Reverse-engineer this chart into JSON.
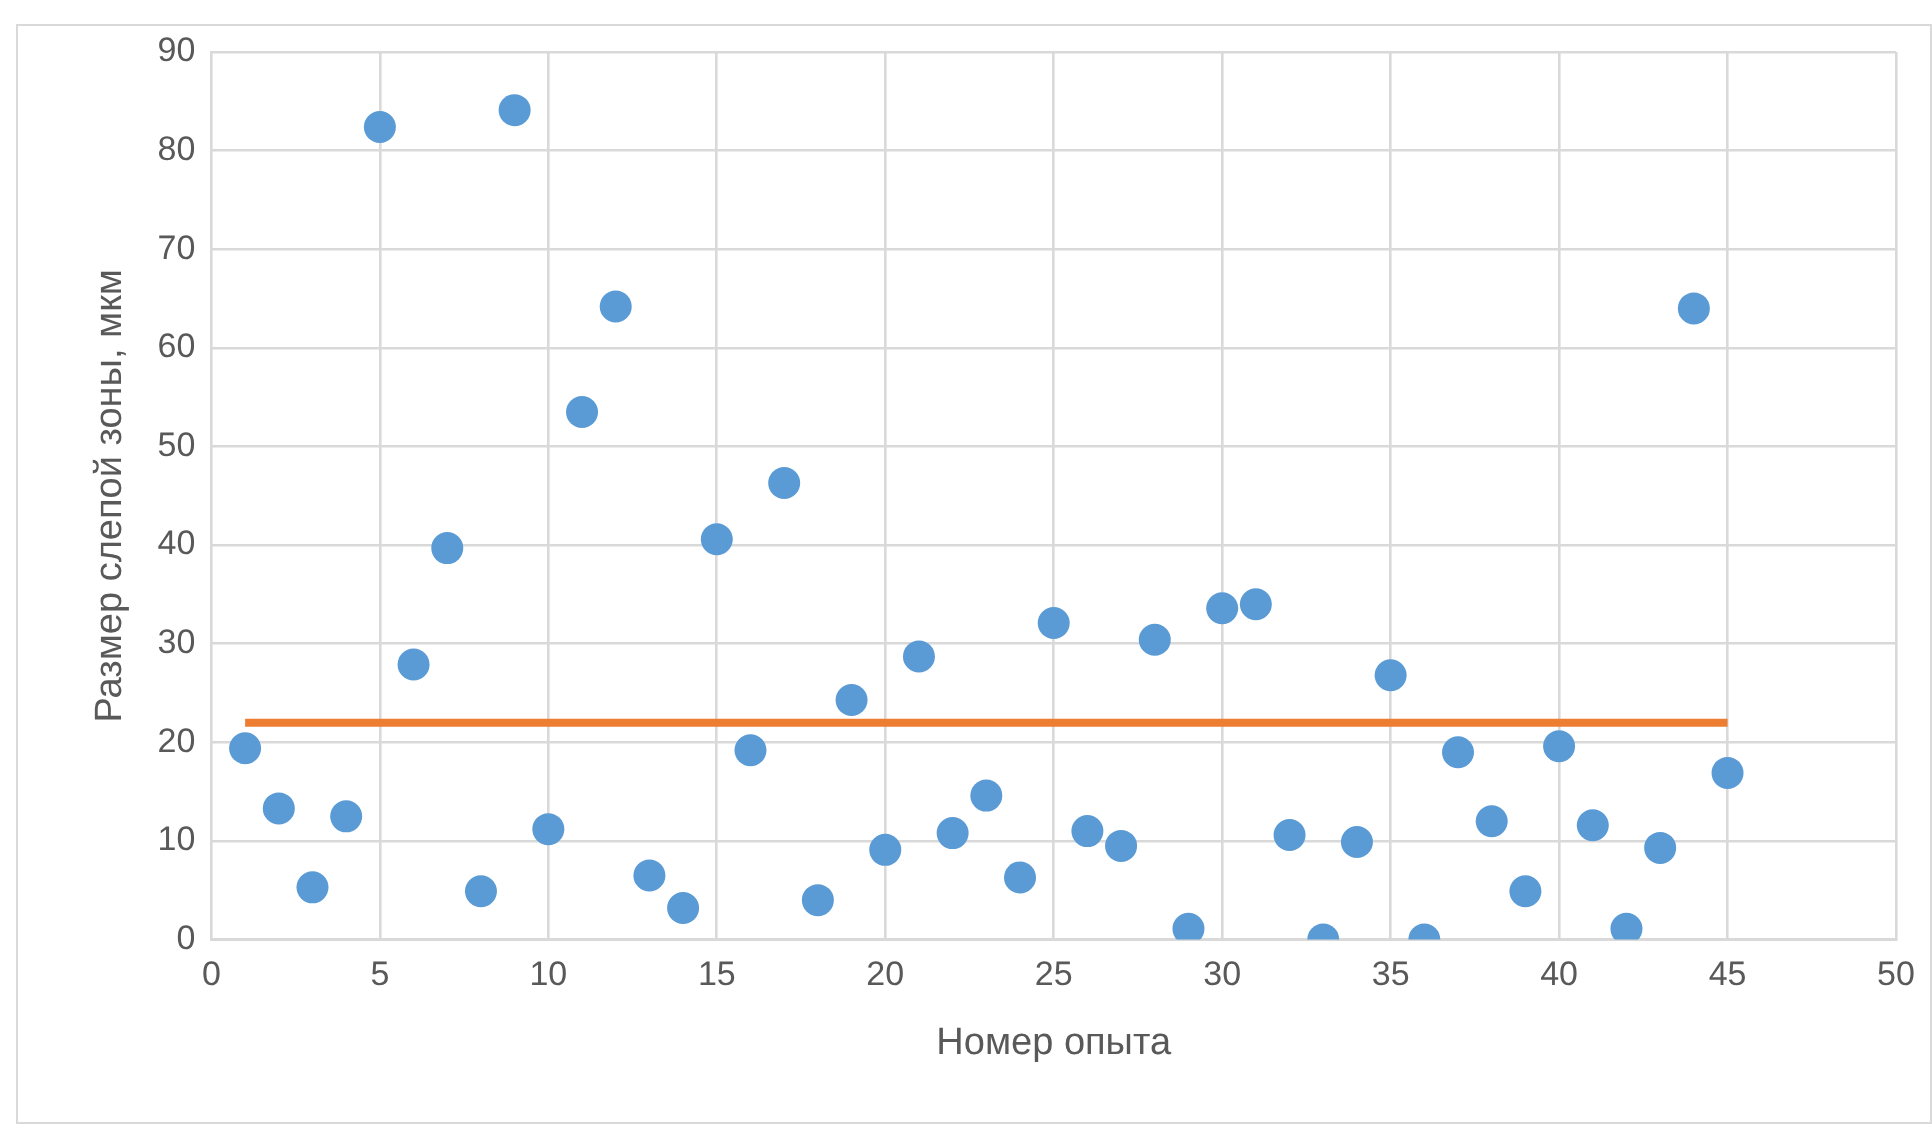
{
  "chart_data": {
    "type": "scatter",
    "xlabel": "Номер опыта",
    "ylabel": "Размер слепой зоны, мкм",
    "xlim": [
      0,
      50
    ],
    "xticks": [
      0,
      5,
      10,
      15,
      20,
      25,
      30,
      35,
      40,
      45,
      50
    ],
    "ylim": [
      0,
      90
    ],
    "yticks": [
      0,
      10,
      20,
      30,
      40,
      50,
      60,
      70,
      80,
      90
    ],
    "grid": true,
    "legend": false,
    "series": [
      {
        "type": "scatter",
        "marker": "circle",
        "color": "#5b9bd5",
        "x": [
          1,
          2,
          3,
          4,
          5,
          6,
          7,
          8,
          9,
          10,
          11,
          12,
          13,
          14,
          15,
          16,
          17,
          18,
          19,
          20,
          21,
          22,
          23,
          24,
          25,
          26,
          27,
          28,
          29,
          30,
          31,
          32,
          33,
          34,
          35,
          36,
          37,
          38,
          39,
          40,
          41,
          42,
          43,
          44,
          45
        ],
        "values": [
          19.4,
          13.3,
          5.3,
          12.5,
          82.4,
          27.9,
          39.7,
          4.9,
          84.1,
          11.2,
          53.5,
          64.2,
          6.5,
          3.2,
          40.6,
          19.2,
          46.3,
          4.0,
          24.3,
          9.1,
          28.7,
          10.8,
          14.6,
          6.3,
          32.1,
          11.0,
          9.5,
          30.4,
          1.1,
          33.6,
          34.0,
          10.6,
          0,
          9.9,
          26.8,
          0,
          19.0,
          12.0,
          4.9,
          19.6,
          11.6,
          1.1,
          9.3,
          64.0,
          16.9
        ]
      },
      {
        "type": "line",
        "marker": "none",
        "color": "#ed7d31",
        "x": [
          1,
          45
        ],
        "values": [
          22,
          22
        ]
      }
    ]
  }
}
